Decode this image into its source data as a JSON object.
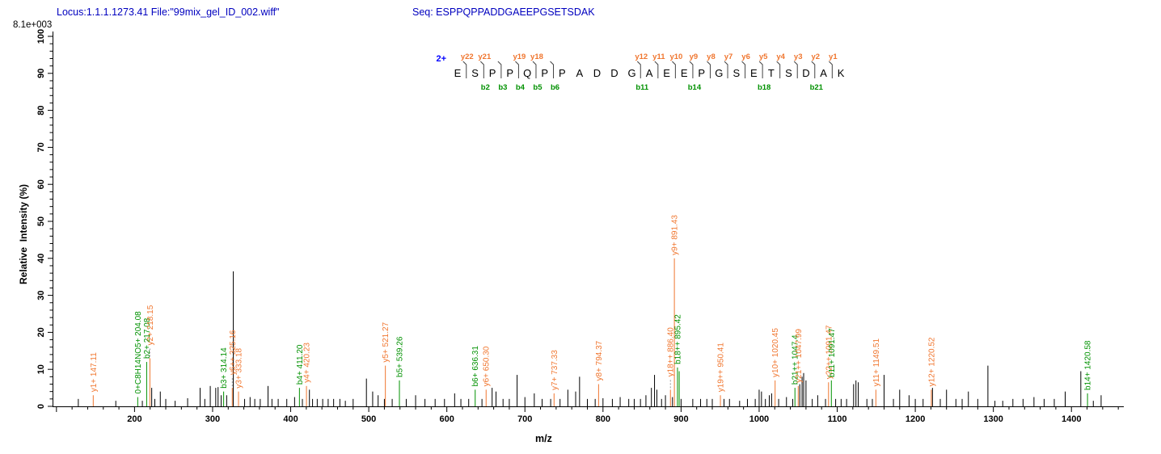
{
  "header": {
    "locus_file": "Locus:1.1.1.1273.41 File:\"99mix_gel_ID_002.wiff\"",
    "seq": "Seq: ESPPQPPADDGAEEPGSETSDAK",
    "max_intensity": "8.1e+003"
  },
  "colors": {
    "header_text": "#0000BF",
    "charge": "#0000FF",
    "y_ion": "#F0762F",
    "b_ion": "#009100",
    "peak": "#000000",
    "axis": "#000000",
    "cleavage_mark": "#444444"
  },
  "peptide": {
    "charge": "2+",
    "residues": [
      "E",
      "S",
      "P",
      "P",
      "Q",
      "P",
      "P",
      "A",
      "D",
      "D",
      "G",
      "A",
      "E",
      "E",
      "P",
      "G",
      "S",
      "E",
      "T",
      "S",
      "D",
      "A",
      "K"
    ],
    "cleavages": [
      {
        "site": 1,
        "y": "y22"
      },
      {
        "site": 2,
        "y": "y21",
        "b": "b2"
      },
      {
        "site": 3,
        "b": "b3"
      },
      {
        "site": 4,
        "y": "y19",
        "b": "b4"
      },
      {
        "site": 5,
        "y": "y18",
        "b": "b5"
      },
      {
        "site": 6,
        "b": "b6"
      },
      {
        "site": 11,
        "y": "y12",
        "b": "b11"
      },
      {
        "site": 12,
        "y": "y11"
      },
      {
        "site": 13,
        "y": "y10"
      },
      {
        "site": 14,
        "y": "y9",
        "b": "b14"
      },
      {
        "site": 15,
        "y": "y8"
      },
      {
        "site": 16,
        "y": "y7"
      },
      {
        "site": 17,
        "y": "y6"
      },
      {
        "site": 18,
        "y": "y5",
        "b": "b18"
      },
      {
        "site": 19,
        "y": "y4"
      },
      {
        "site": 20,
        "y": "y3"
      },
      {
        "site": 21,
        "y": "y2",
        "b": "b21"
      },
      {
        "site": 22,
        "y": "y1"
      }
    ]
  },
  "axes": {
    "xlabel": "m/z",
    "ylabel": "Relative  Intensity (%)"
  },
  "chart_data": {
    "type": "bar",
    "subtype": "ms2-mass-spectrum",
    "title": "",
    "xlabel": "m/z",
    "ylabel": "Relative  Intensity (%)",
    "xlim": [
      95,
      1465
    ],
    "ylim": [
      0,
      100
    ],
    "x_major_ticks": [
      200,
      300,
      400,
      500,
      600,
      700,
      800,
      900,
      1000,
      1100,
      1200,
      1300,
      1400
    ],
    "x_minor_step": 20,
    "y_major_ticks": [
      0,
      10,
      20,
      30,
      40,
      50,
      60,
      70,
      80,
      90,
      100
    ],
    "y_minor_step": 2,
    "grid": false,
    "labeled_peaks": [
      {
        "label": "y1+ 147.11",
        "mz": 147.11,
        "intensity": 3,
        "series": "y"
      },
      {
        "label": "0+C8H14NO5+ 204.08",
        "mz": 204.08,
        "intensity": 2.5,
        "series": "b"
      },
      {
        "label": "b2+ 217.08",
        "mz": 217.08,
        "intensity": 12,
        "series": "b",
        "dx": -1.5
      },
      {
        "label": "y2+ 218.15",
        "mz": 218.15,
        "intensity": 13,
        "series": "y",
        "dx": 1.5,
        "dashed": true
      },
      {
        "label": "b3+ 314.14",
        "mz": 314.14,
        "intensity": 4,
        "series": "b"
      },
      {
        "label": "y6++ 325.16",
        "mz": 325.16,
        "intensity": 5,
        "series": "y",
        "dashed": true
      },
      {
        "label": "y3+ 333.18",
        "mz": 333.18,
        "intensity": 4,
        "series": "y"
      },
      {
        "label": "b4+ 411.20",
        "mz": 411.2,
        "intensity": 5,
        "series": "b"
      },
      {
        "label": "y4+ 420.23",
        "mz": 420.23,
        "intensity": 5.5,
        "series": "y"
      },
      {
        "label": "y5+ 521.27",
        "mz": 521.27,
        "intensity": 11,
        "series": "y"
      },
      {
        "label": "b5+ 539.26",
        "mz": 539.26,
        "intensity": 7,
        "series": "b"
      },
      {
        "label": "b6+ 636.31",
        "mz": 636.31,
        "intensity": 4.5,
        "series": "b"
      },
      {
        "label": "y6+ 650.30",
        "mz": 650.3,
        "intensity": 4.5,
        "series": "y"
      },
      {
        "label": "y7+ 737.33",
        "mz": 737.33,
        "intensity": 3.5,
        "series": "y"
      },
      {
        "label": "y8+ 794.37",
        "mz": 794.37,
        "intensity": 6,
        "series": "y"
      },
      {
        "label": "y18++ 886.40",
        "mz": 886.4,
        "intensity": 4.5,
        "series": "y",
        "dashed": true
      },
      {
        "label": "y9+ 891.43",
        "mz": 891.43,
        "intensity": 40,
        "series": "y"
      },
      {
        "label": "b18++ 895.42",
        "mz": 895.42,
        "intensity": 10.5,
        "series": "b"
      },
      {
        "label": "",
        "mz": 897.6,
        "intensity": 9.5,
        "series": "b"
      },
      {
        "label": "y19++ 950.41",
        "mz": 950.41,
        "intensity": 3,
        "series": "y"
      },
      {
        "label": "y10+ 1020.45",
        "mz": 1020.45,
        "intensity": 7,
        "series": "y"
      },
      {
        "label": "b21++ 1047.4",
        "mz": 1047.4,
        "intensity": 5,
        "series": "b",
        "dx": -1.5
      },
      {
        "label": "y21++ 1047.99",
        "mz": 1047.99,
        "intensity": 5.5,
        "series": "y",
        "dx": 2
      },
      {
        "label": "y22++ 1091.47",
        "mz": 1091.47,
        "intensity": 6.5,
        "series": "y",
        "dx": -2.5
      },
      {
        "label": "b11+ 1091.47",
        "mz": 1091.47,
        "intensity": 7,
        "series": "b",
        "dx": 1
      },
      {
        "label": "y11+ 1149.51",
        "mz": 1149.51,
        "intensity": 4.5,
        "series": "y"
      },
      {
        "label": "y12+ 1220.52",
        "mz": 1220.52,
        "intensity": 4.5,
        "series": "y"
      },
      {
        "label": "b14+ 1420.58",
        "mz": 1420.58,
        "intensity": 3.5,
        "series": "b"
      }
    ],
    "unlabeled_peaks": [
      [
        128,
        2
      ],
      [
        176,
        1.5
      ],
      [
        210,
        1.5
      ],
      [
        222,
        5
      ],
      [
        226,
        2
      ],
      [
        233,
        4
      ],
      [
        240,
        2
      ],
      [
        252,
        1.5
      ],
      [
        268,
        2.2
      ],
      [
        284,
        5
      ],
      [
        290,
        2
      ],
      [
        297,
        5.5
      ],
      [
        304,
        5
      ],
      [
        307,
        5.2
      ],
      [
        311,
        3
      ],
      [
        318,
        3
      ],
      [
        326.5,
        36.5
      ],
      [
        341,
        2
      ],
      [
        348,
        2.5
      ],
      [
        354,
        2
      ],
      [
        361,
        2
      ],
      [
        371,
        5.5
      ],
      [
        376,
        2
      ],
      [
        384,
        2
      ],
      [
        395,
        2
      ],
      [
        405,
        2.5
      ],
      [
        415,
        2
      ],
      [
        424,
        4.5
      ],
      [
        428,
        2
      ],
      [
        434,
        2
      ],
      [
        441,
        2
      ],
      [
        448,
        2
      ],
      [
        455,
        2
      ],
      [
        463,
        2
      ],
      [
        470,
        1.5
      ],
      [
        480,
        2
      ],
      [
        497,
        7.5
      ],
      [
        505,
        4
      ],
      [
        512,
        3
      ],
      [
        520,
        2
      ],
      [
        530,
        2
      ],
      [
        548,
        2
      ],
      [
        560,
        3
      ],
      [
        572,
        2
      ],
      [
        585,
        2
      ],
      [
        597,
        2
      ],
      [
        610,
        3.5
      ],
      [
        618,
        2
      ],
      [
        628,
        2
      ],
      [
        645,
        2
      ],
      [
        658,
        5
      ],
      [
        663,
        4
      ],
      [
        672,
        2
      ],
      [
        680,
        2
      ],
      [
        690,
        8.5
      ],
      [
        700,
        2.5
      ],
      [
        712,
        3.5
      ],
      [
        722,
        2
      ],
      [
        733,
        2
      ],
      [
        745,
        2
      ],
      [
        755,
        4.5
      ],
      [
        765,
        4
      ],
      [
        770,
        8
      ],
      [
        780,
        2
      ],
      [
        790,
        2
      ],
      [
        800,
        2.2
      ],
      [
        812,
        2
      ],
      [
        822,
        2.5
      ],
      [
        833,
        2
      ],
      [
        840,
        2
      ],
      [
        848,
        2
      ],
      [
        855,
        3
      ],
      [
        862,
        5
      ],
      [
        866,
        8.5
      ],
      [
        869,
        4.5
      ],
      [
        875,
        2
      ],
      [
        880,
        3
      ],
      [
        889,
        2.5
      ],
      [
        900,
        2
      ],
      [
        915,
        2
      ],
      [
        925,
        2
      ],
      [
        933,
        2
      ],
      [
        940,
        2
      ],
      [
        955,
        2
      ],
      [
        962,
        2
      ],
      [
        975,
        1.5
      ],
      [
        985,
        2
      ],
      [
        995,
        2
      ],
      [
        1000,
        4.5
      ],
      [
        1003,
        4
      ],
      [
        1008,
        2
      ],
      [
        1013,
        3
      ],
      [
        1016,
        3.5
      ],
      [
        1025,
        2
      ],
      [
        1035,
        2.5
      ],
      [
        1043,
        2
      ],
      [
        1052,
        6
      ],
      [
        1055,
        8
      ],
      [
        1057,
        9
      ],
      [
        1060,
        7
      ],
      [
        1068,
        2
      ],
      [
        1075,
        3
      ],
      [
        1085,
        2
      ],
      [
        1098,
        2
      ],
      [
        1105,
        2
      ],
      [
        1112,
        2
      ],
      [
        1121,
        6
      ],
      [
        1124,
        7
      ],
      [
        1127,
        6.5
      ],
      [
        1138,
        2
      ],
      [
        1145,
        2
      ],
      [
        1160,
        8.5
      ],
      [
        1172,
        2
      ],
      [
        1180,
        4.5
      ],
      [
        1192,
        3
      ],
      [
        1200,
        2
      ],
      [
        1210,
        2
      ],
      [
        1222,
        5
      ],
      [
        1232,
        2
      ],
      [
        1240,
        4.5
      ],
      [
        1252,
        2
      ],
      [
        1260,
        2
      ],
      [
        1268,
        4
      ],
      [
        1280,
        2
      ],
      [
        1293,
        11
      ],
      [
        1302,
        1.5
      ],
      [
        1312,
        1.5
      ],
      [
        1325,
        2
      ],
      [
        1338,
        2
      ],
      [
        1352,
        2.5
      ],
      [
        1365,
        2
      ],
      [
        1378,
        2
      ],
      [
        1392,
        4
      ],
      [
        1412,
        9.5
      ],
      [
        1428,
        1.5
      ],
      [
        1438,
        3
      ]
    ]
  }
}
